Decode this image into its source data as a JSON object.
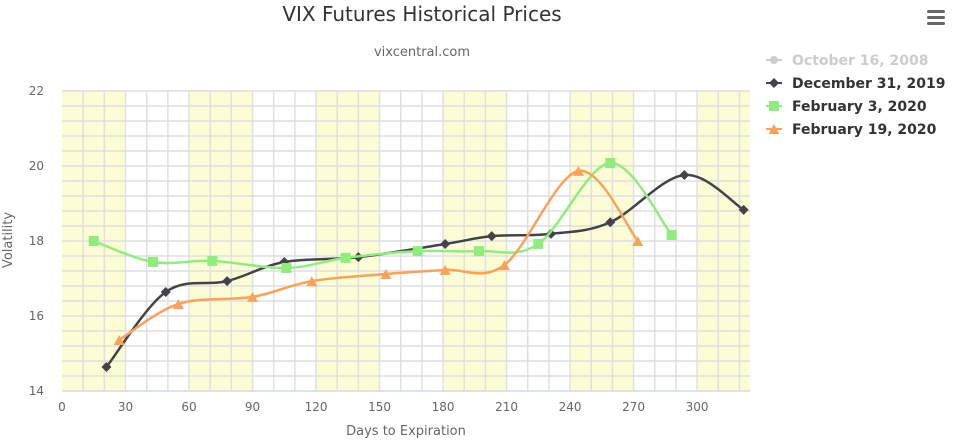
{
  "chart_data": {
    "type": "line",
    "title": "VIX Futures Historical Prices",
    "subtitle": "vixcentral.com",
    "xlabel": "Days to Expiration",
    "ylabel": "Volatility",
    "xlim": [
      0,
      325
    ],
    "ylim": [
      14,
      22
    ],
    "xticks": [
      0,
      30,
      60,
      90,
      120,
      150,
      180,
      210,
      240,
      270,
      300
    ],
    "yticks": [
      14,
      16,
      18,
      20,
      22
    ],
    "grid": true,
    "plot_bands_x": [
      [
        0,
        30
      ],
      [
        60,
        90
      ],
      [
        120,
        150
      ],
      [
        180,
        210
      ],
      [
        240,
        270
      ],
      [
        300,
        325
      ]
    ],
    "band_color": "#fdfdd5",
    "legend_position": "top-right",
    "series": [
      {
        "name": "October 16, 2008",
        "color": "#cccccc",
        "marker": "circle",
        "hidden": true,
        "points": []
      },
      {
        "name": "December 31, 2019",
        "color": "#434348",
        "marker": "diamond",
        "hidden": false,
        "points": [
          [
            21,
            14.64
          ],
          [
            49,
            16.64
          ],
          [
            78,
            16.93
          ],
          [
            105,
            17.44
          ],
          [
            140,
            17.57
          ],
          [
            181,
            17.92
          ],
          [
            203,
            18.13
          ],
          [
            231,
            18.19
          ],
          [
            259,
            18.5
          ],
          [
            294,
            19.76
          ],
          [
            322,
            18.83
          ]
        ]
      },
      {
        "name": "February 3, 2020",
        "color": "#90ed7d",
        "marker": "square",
        "hidden": false,
        "points": [
          [
            15,
            18.0
          ],
          [
            43,
            17.44
          ],
          [
            71,
            17.47
          ],
          [
            106,
            17.28
          ],
          [
            134,
            17.55
          ],
          [
            168,
            17.73
          ],
          [
            197,
            17.73
          ],
          [
            225,
            17.92
          ],
          [
            259,
            20.08
          ],
          [
            288,
            18.16
          ]
        ]
      },
      {
        "name": "February 19, 2020",
        "color": "#f7a35c",
        "marker": "triangle",
        "hidden": false,
        "points": [
          [
            27,
            15.36
          ],
          [
            55,
            16.32
          ],
          [
            90,
            16.51
          ],
          [
            118,
            16.93
          ],
          [
            153,
            17.12
          ],
          [
            181,
            17.23
          ],
          [
            209,
            17.36
          ],
          [
            244,
            19.87
          ],
          [
            272,
            18.0
          ]
        ]
      }
    ]
  },
  "menu_icon": "hamburger-menu-icon"
}
